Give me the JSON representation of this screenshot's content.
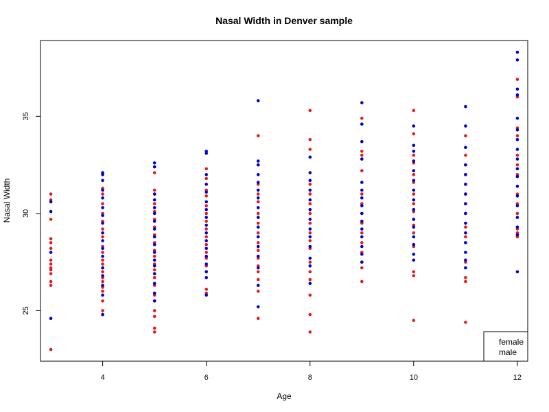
{
  "chart_data": {
    "type": "scatter",
    "title": "Nasal Width in Denver sample",
    "xlabel": "Age",
    "ylabel": "Nasal Width",
    "xlim": [
      2.8,
      12.2
    ],
    "ylim": [
      22.4,
      38.9
    ],
    "x_ticks": [
      "4",
      "6",
      "8",
      "10",
      "12"
    ],
    "y_ticks": [
      "25",
      "30",
      "35"
    ],
    "grid": false,
    "legend_position": "bottom-right",
    "series": [
      {
        "name": "female",
        "color": "#e41a1c",
        "points": [
          [
            3,
            23.0
          ],
          [
            3,
            26.3
          ],
          [
            3,
            26.5
          ],
          [
            3,
            26.9
          ],
          [
            3,
            27.1
          ],
          [
            3,
            27.2
          ],
          [
            3,
            27.4
          ],
          [
            3,
            27.6
          ],
          [
            3,
            28.2
          ],
          [
            3,
            28.5
          ],
          [
            3,
            28.7
          ],
          [
            3,
            29.7
          ],
          [
            3,
            30.7
          ],
          [
            3,
            31.0
          ],
          [
            4,
            24.8
          ],
          [
            4,
            25.0
          ],
          [
            4,
            25.5
          ],
          [
            4,
            26.0
          ],
          [
            4,
            26.2
          ],
          [
            4,
            26.5
          ],
          [
            4,
            26.7
          ],
          [
            4,
            27.0
          ],
          [
            4,
            27.2
          ],
          [
            4,
            27.4
          ],
          [
            4,
            27.6
          ],
          [
            4,
            28.0
          ],
          [
            4,
            28.3
          ],
          [
            4,
            28.8
          ],
          [
            4,
            29.2
          ],
          [
            4,
            29.6
          ],
          [
            4,
            30.0
          ],
          [
            4,
            30.5
          ],
          [
            4,
            31.0
          ],
          [
            4,
            31.3
          ],
          [
            5,
            23.9
          ],
          [
            5,
            24.1
          ],
          [
            5,
            24.7
          ],
          [
            5,
            25.0
          ],
          [
            5,
            25.5
          ],
          [
            5,
            25.8
          ],
          [
            5,
            26.3
          ],
          [
            5,
            26.7
          ],
          [
            5,
            27.1
          ],
          [
            5,
            27.4
          ],
          [
            5,
            27.8
          ],
          [
            5,
            28.1
          ],
          [
            5,
            28.5
          ],
          [
            5,
            28.9
          ],
          [
            5,
            29.3
          ],
          [
            5,
            29.7
          ],
          [
            5,
            30.1
          ],
          [
            5,
            30.5
          ],
          [
            5,
            31.0
          ],
          [
            5,
            31.2
          ],
          [
            5,
            32.1
          ],
          [
            5,
            32.4
          ],
          [
            6,
            25.9
          ],
          [
            6,
            26.1
          ],
          [
            6,
            27.0
          ],
          [
            6,
            27.3
          ],
          [
            6,
            27.7
          ],
          [
            6,
            28.0
          ],
          [
            6,
            28.4
          ],
          [
            6,
            28.8
          ],
          [
            6,
            29.2
          ],
          [
            6,
            29.6
          ],
          [
            6,
            30.0
          ],
          [
            6,
            30.4
          ],
          [
            6,
            30.9
          ],
          [
            6,
            31.2
          ],
          [
            6,
            31.8
          ],
          [
            6,
            32.3
          ],
          [
            7,
            24.6
          ],
          [
            7,
            26.0
          ],
          [
            7,
            26.6
          ],
          [
            7,
            27.0
          ],
          [
            7,
            27.3
          ],
          [
            7,
            27.7
          ],
          [
            7,
            28.1
          ],
          [
            7,
            28.5
          ],
          [
            7,
            29.0
          ],
          [
            7,
            29.5
          ],
          [
            7,
            30.0
          ],
          [
            7,
            30.6
          ],
          [
            7,
            31.0
          ],
          [
            7,
            31.5
          ],
          [
            7,
            32.5
          ],
          [
            7,
            34.0
          ],
          [
            8,
            23.9
          ],
          [
            8,
            24.8
          ],
          [
            8,
            25.8
          ],
          [
            8,
            26.6
          ],
          [
            8,
            27.0
          ],
          [
            8,
            27.5
          ],
          [
            8,
            28.2
          ],
          [
            8,
            28.6
          ],
          [
            8,
            29.0
          ],
          [
            8,
            29.5
          ],
          [
            8,
            30.0
          ],
          [
            8,
            30.5
          ],
          [
            8,
            31.0
          ],
          [
            8,
            31.5
          ],
          [
            8,
            33.3
          ],
          [
            8,
            33.8
          ],
          [
            8,
            35.3
          ],
          [
            9,
            26.5
          ],
          [
            9,
            27.2
          ],
          [
            9,
            27.5
          ],
          [
            9,
            28.0
          ],
          [
            9,
            28.5
          ],
          [
            9,
            29.0
          ],
          [
            9,
            29.5
          ],
          [
            9,
            30.0
          ],
          [
            9,
            30.5
          ],
          [
            9,
            31.0
          ],
          [
            9,
            32.2
          ],
          [
            9,
            32.8
          ],
          [
            9,
            33.0
          ],
          [
            9,
            33.2
          ],
          [
            9,
            34.9
          ],
          [
            10,
            24.5
          ],
          [
            10,
            26.8
          ],
          [
            10,
            27.0
          ],
          [
            10,
            28.3
          ],
          [
            10,
            29.0
          ],
          [
            10,
            29.4
          ],
          [
            10,
            29.7
          ],
          [
            10,
            30.1
          ],
          [
            10,
            30.5
          ],
          [
            10,
            31.0
          ],
          [
            10,
            31.6
          ],
          [
            10,
            32.0
          ],
          [
            10,
            32.6
          ],
          [
            10,
            33.0
          ],
          [
            10,
            34.1
          ],
          [
            10,
            35.3
          ],
          [
            11,
            24.4
          ],
          [
            11,
            26.5
          ],
          [
            11,
            26.7
          ],
          [
            11,
            27.5
          ],
          [
            11,
            28.5
          ],
          [
            11,
            28.8
          ],
          [
            11,
            29.3
          ],
          [
            11,
            30.0
          ],
          [
            11,
            30.5
          ],
          [
            11,
            31.0
          ],
          [
            11,
            31.5
          ],
          [
            11,
            32.0
          ],
          [
            11,
            32.5
          ],
          [
            11,
            33.0
          ],
          [
            11,
            34.0
          ],
          [
            12,
            28.8
          ],
          [
            12,
            29.0
          ],
          [
            12,
            29.2
          ],
          [
            12,
            30.0
          ],
          [
            12,
            30.5
          ],
          [
            12,
            31.0
          ],
          [
            12,
            32.0
          ],
          [
            12,
            32.5
          ],
          [
            12,
            33.0
          ],
          [
            12,
            34.0
          ],
          [
            12,
            34.4
          ],
          [
            12,
            36.0
          ],
          [
            12,
            36.9
          ]
        ]
      },
      {
        "name": "male",
        "color": "#0000cc",
        "points": [
          [
            3,
            24.6
          ],
          [
            3,
            28.0
          ],
          [
            3,
            30.1
          ],
          [
            3,
            30.6
          ],
          [
            4,
            24.8
          ],
          [
            4,
            25.8
          ],
          [
            4,
            26.3
          ],
          [
            4,
            26.8
          ],
          [
            4,
            27.2
          ],
          [
            4,
            27.8
          ],
          [
            4,
            28.2
          ],
          [
            4,
            28.6
          ],
          [
            4,
            29.0
          ],
          [
            4,
            29.5
          ],
          [
            4,
            29.9
          ],
          [
            4,
            30.3
          ],
          [
            4,
            30.8
          ],
          [
            4,
            31.2
          ],
          [
            4,
            31.7
          ],
          [
            4,
            32.0
          ],
          [
            4,
            32.1
          ],
          [
            5,
            25.5
          ],
          [
            5,
            25.9
          ],
          [
            5,
            26.4
          ],
          [
            5,
            26.9
          ],
          [
            5,
            27.3
          ],
          [
            5,
            27.6
          ],
          [
            5,
            28.0
          ],
          [
            5,
            28.4
          ],
          [
            5,
            28.8
          ],
          [
            5,
            29.2
          ],
          [
            5,
            29.6
          ],
          [
            5,
            30.0
          ],
          [
            5,
            30.3
          ],
          [
            5,
            30.7
          ],
          [
            5,
            31.0
          ],
          [
            5,
            32.4
          ],
          [
            5,
            32.6
          ],
          [
            6,
            25.8
          ],
          [
            6,
            26.7
          ],
          [
            6,
            27.0
          ],
          [
            6,
            27.4
          ],
          [
            6,
            27.8
          ],
          [
            6,
            28.2
          ],
          [
            6,
            28.6
          ],
          [
            6,
            29.0
          ],
          [
            6,
            29.4
          ],
          [
            6,
            29.8
          ],
          [
            6,
            30.2
          ],
          [
            6,
            30.6
          ],
          [
            6,
            31.1
          ],
          [
            6,
            31.5
          ],
          [
            6,
            32.0
          ],
          [
            6,
            33.1
          ],
          [
            6,
            33.2
          ],
          [
            7,
            25.2
          ],
          [
            7,
            26.3
          ],
          [
            7,
            27.2
          ],
          [
            7,
            27.8
          ],
          [
            7,
            28.3
          ],
          [
            7,
            28.8
          ],
          [
            7,
            29.3
          ],
          [
            7,
            29.8
          ],
          [
            7,
            30.3
          ],
          [
            7,
            30.8
          ],
          [
            7,
            31.2
          ],
          [
            7,
            31.6
          ],
          [
            7,
            32.0
          ],
          [
            7,
            32.5
          ],
          [
            7,
            32.7
          ],
          [
            7,
            35.8
          ],
          [
            8,
            26.4
          ],
          [
            8,
            27.3
          ],
          [
            8,
            27.7
          ],
          [
            8,
            28.3
          ],
          [
            8,
            28.8
          ],
          [
            8,
            29.2
          ],
          [
            8,
            29.7
          ],
          [
            8,
            30.2
          ],
          [
            8,
            30.7
          ],
          [
            8,
            31.2
          ],
          [
            8,
            31.7
          ],
          [
            8,
            32.1
          ],
          [
            8,
            32.9
          ],
          [
            9,
            27.5
          ],
          [
            9,
            27.9
          ],
          [
            9,
            28.3
          ],
          [
            9,
            28.8
          ],
          [
            9,
            29.2
          ],
          [
            9,
            29.6
          ],
          [
            9,
            30.0
          ],
          [
            9,
            30.4
          ],
          [
            9,
            30.8
          ],
          [
            9,
            31.2
          ],
          [
            9,
            31.6
          ],
          [
            9,
            32.8
          ],
          [
            9,
            33.7
          ],
          [
            9,
            34.6
          ],
          [
            9,
            35.7
          ],
          [
            10,
            27.6
          ],
          [
            10,
            27.9
          ],
          [
            10,
            28.4
          ],
          [
            10,
            28.8
          ],
          [
            10,
            29.3
          ],
          [
            10,
            29.7
          ],
          [
            10,
            30.2
          ],
          [
            10,
            30.7
          ],
          [
            10,
            31.2
          ],
          [
            10,
            31.7
          ],
          [
            10,
            32.2
          ],
          [
            10,
            32.7
          ],
          [
            10,
            33.2
          ],
          [
            10,
            33.5
          ],
          [
            10,
            34.5
          ],
          [
            11,
            27.2
          ],
          [
            11,
            27.6
          ],
          [
            11,
            28.0
          ],
          [
            11,
            28.5
          ],
          [
            11,
            29.0
          ],
          [
            11,
            29.5
          ],
          [
            11,
            30.0
          ],
          [
            11,
            30.5
          ],
          [
            11,
            31.0
          ],
          [
            11,
            31.5
          ],
          [
            11,
            32.0
          ],
          [
            11,
            32.5
          ],
          [
            11,
            33.4
          ],
          [
            11,
            34.5
          ],
          [
            11,
            35.5
          ],
          [
            12,
            27.0
          ],
          [
            12,
            28.9
          ],
          [
            12,
            29.3
          ],
          [
            12,
            29.8
          ],
          [
            12,
            30.4
          ],
          [
            12,
            30.9
          ],
          [
            12,
            31.4
          ],
          [
            12,
            31.9
          ],
          [
            12,
            32.3
          ],
          [
            12,
            32.8
          ],
          [
            12,
            33.3
          ],
          [
            12,
            33.8
          ],
          [
            12,
            34.3
          ],
          [
            12,
            34.9
          ],
          [
            12,
            36.1
          ],
          [
            12,
            36.4
          ],
          [
            12,
            37.9
          ],
          [
            12,
            38.3
          ]
        ]
      }
    ]
  }
}
